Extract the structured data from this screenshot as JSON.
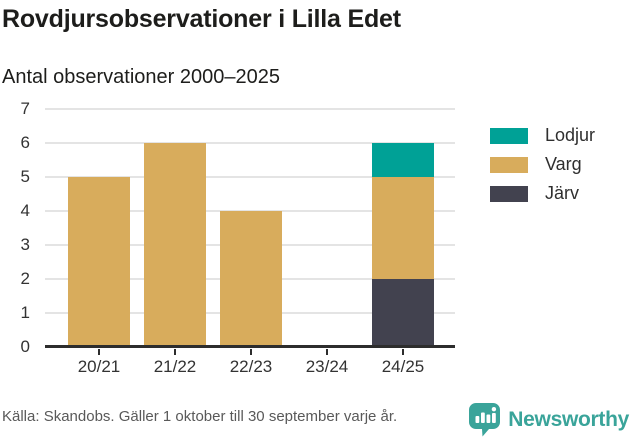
{
  "header": {
    "title": "Rovdjursobservationer i Lilla Edet",
    "subtitle": "Antal observationer 2000–2025"
  },
  "chart_data": {
    "type": "bar",
    "stacked": true,
    "title": "Rovdjursobservationer i Lilla Edet",
    "subtitle": "Antal observationer 2000–2025",
    "categories": [
      "20/21",
      "21/22",
      "22/23",
      "23/24",
      "24/25"
    ],
    "series": [
      {
        "name": "Lodjur",
        "color": "#00a196",
        "values": [
          0,
          0,
          0,
          0,
          1
        ]
      },
      {
        "name": "Varg",
        "color": "#d8ac5c",
        "values": [
          5,
          6,
          4,
          0,
          3
        ]
      },
      {
        "name": "Järv",
        "color": "#42424f",
        "values": [
          0,
          0,
          0,
          0,
          2
        ]
      }
    ],
    "stack_order_bottom_to_top": [
      "Järv",
      "Varg",
      "Lodjur"
    ],
    "totals": [
      5,
      6,
      4,
      0,
      6
    ],
    "xlabel": "",
    "ylabel": "",
    "ylim": [
      0,
      7
    ],
    "yticks": [
      0,
      1,
      2,
      3,
      4,
      5,
      6,
      7
    ],
    "grid": "horizontal",
    "legend_position": "right"
  },
  "footer": {
    "source": "Källa: Skandobs. Gäller 1 oktober till 30 september varje år.",
    "brand": "Newsworthy"
  },
  "colors": {
    "lodjur_teal": "#00a196",
    "varg_tan": "#d8ac5c",
    "jarv_dark": "#42424f",
    "axis": "#2d2d2d",
    "grid": "#e4e4e4",
    "text_dark": "#1d1d1b",
    "text_axis": "#333333",
    "text_muted": "#595959",
    "brand_teal": "#3aa49a"
  }
}
